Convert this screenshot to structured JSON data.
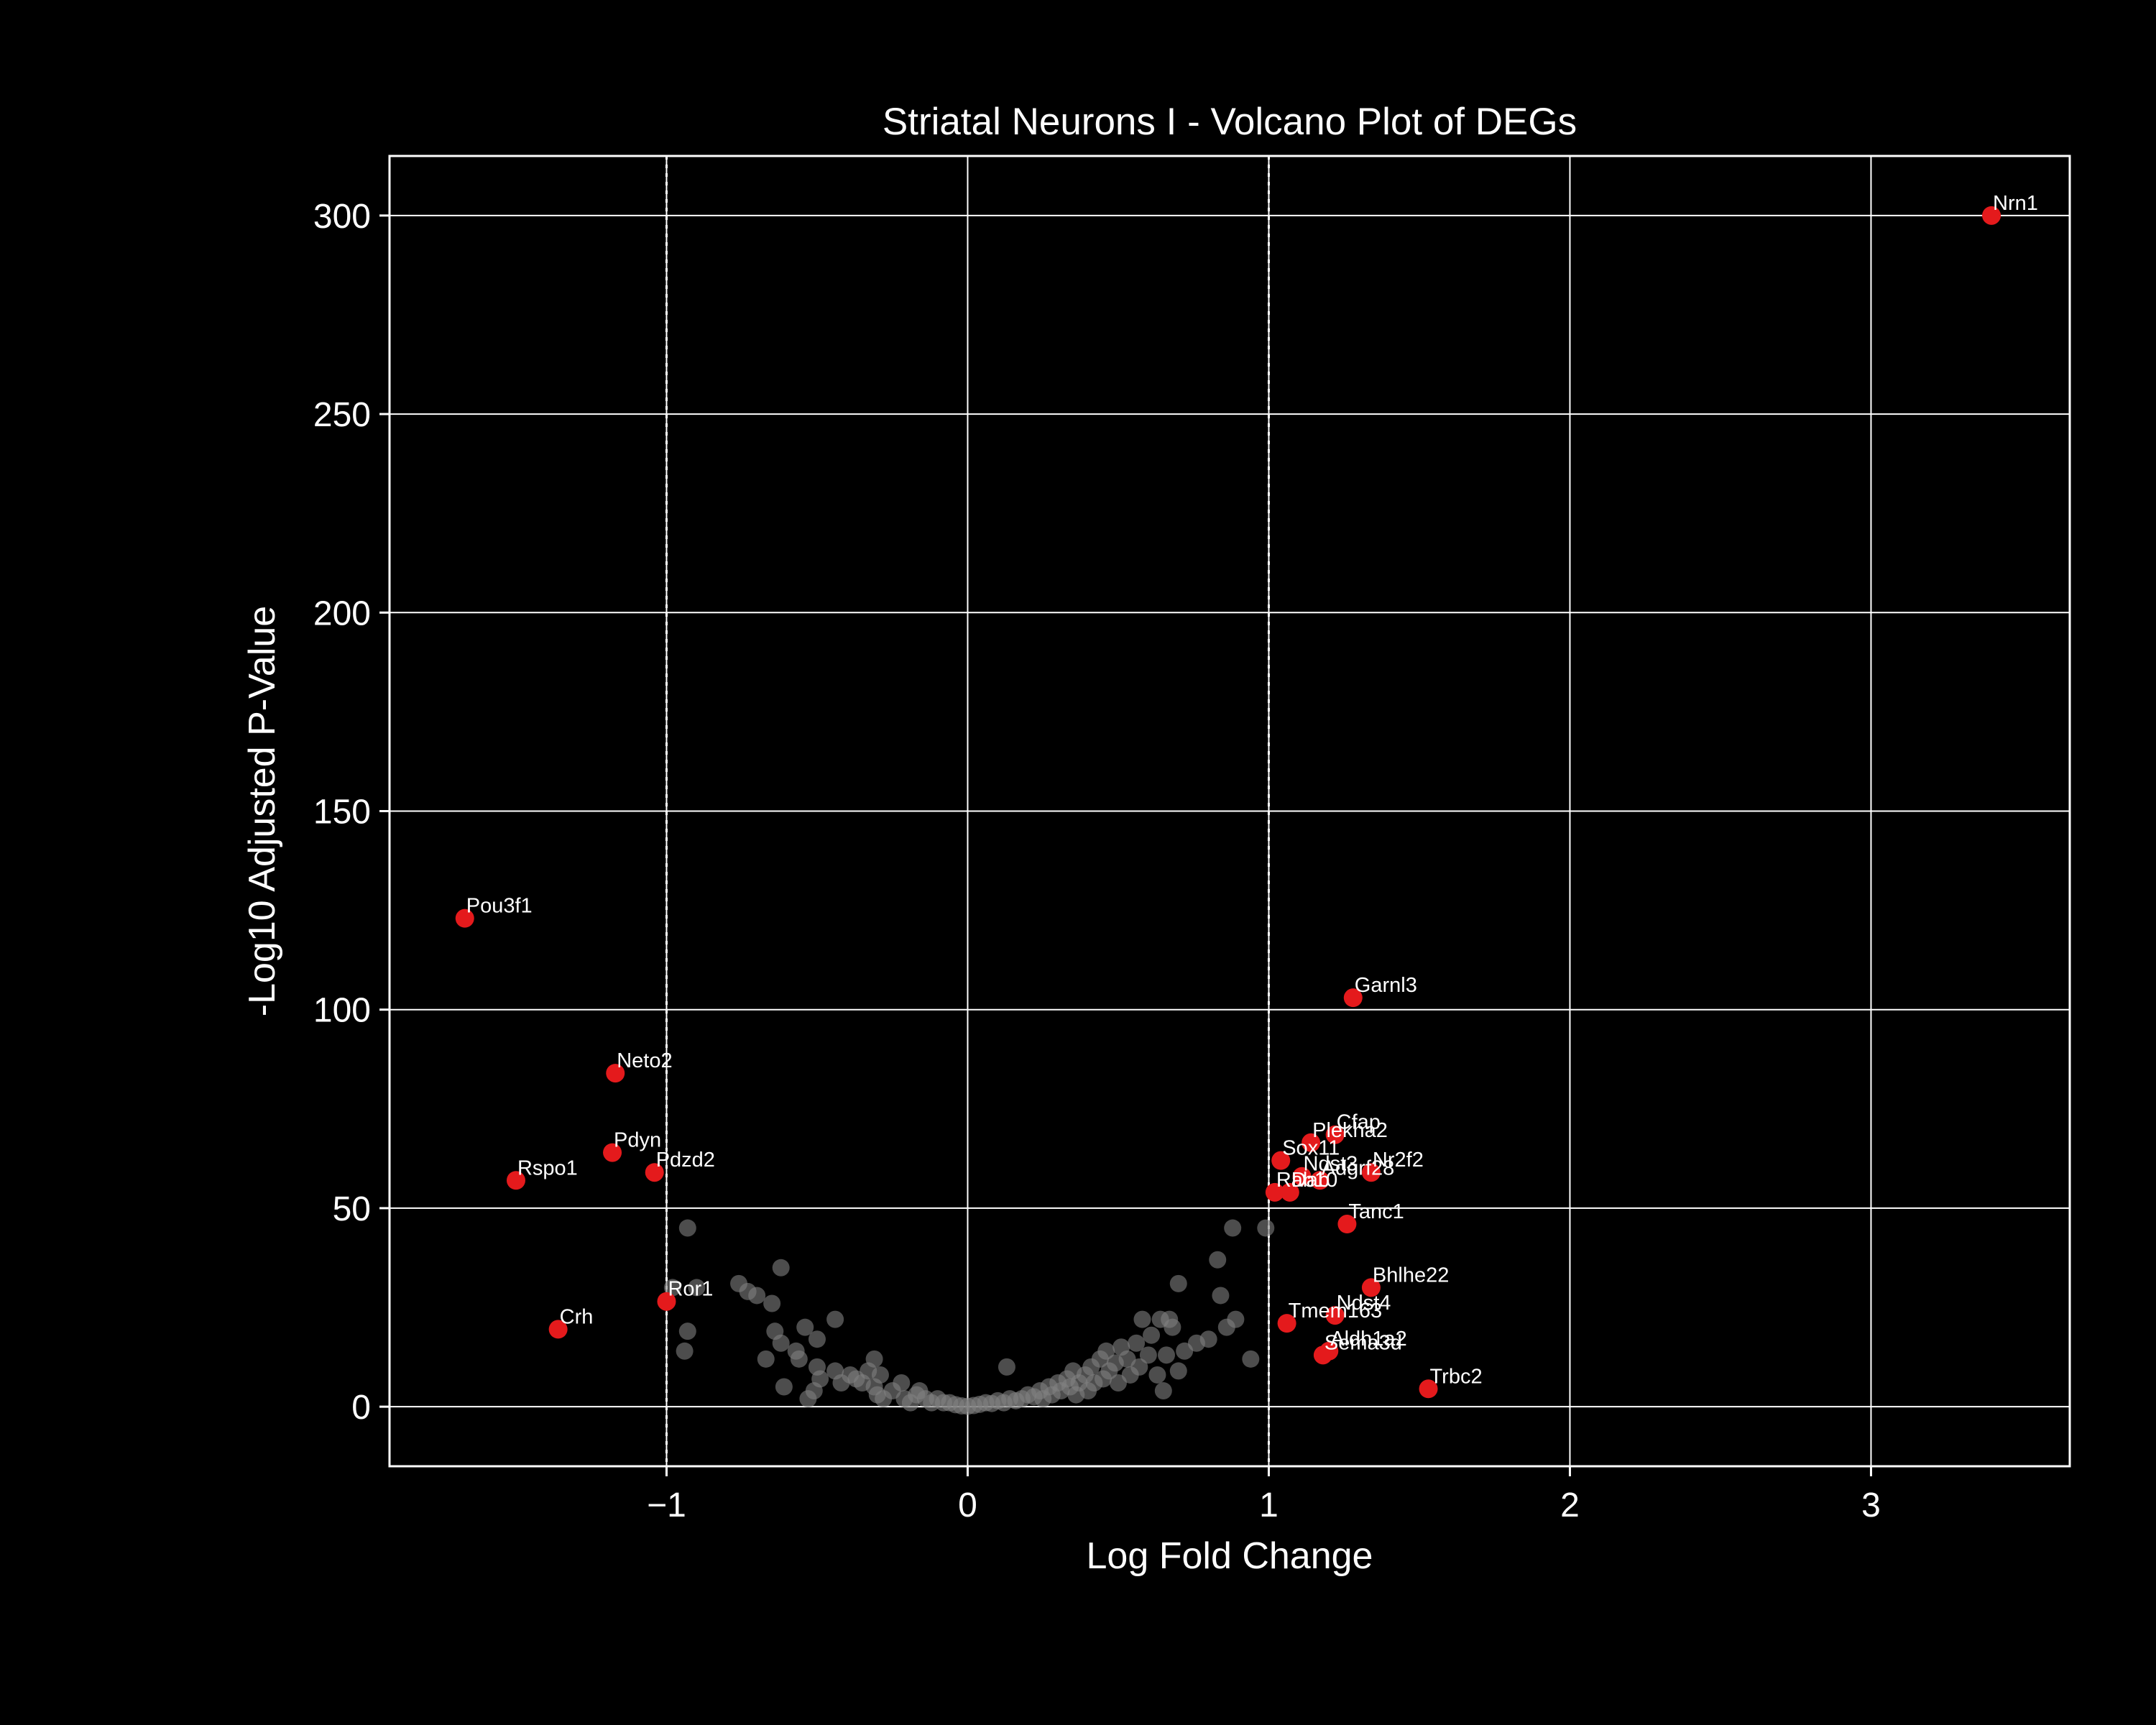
{
  "chart_data": {
    "type": "scatter",
    "title": "Striatal Neurons I - Volcano Plot of DEGs",
    "xlabel": "Log Fold Change",
    "ylabel": "-Log10 Adjusted P-Value",
    "xlim": [
      -1.92,
      3.66
    ],
    "ylim": [
      -15,
      315
    ],
    "xticks": [
      -1,
      0,
      1,
      2,
      3
    ],
    "xtick_labels": [
      "−1",
      "0",
      "1",
      "2",
      "3"
    ],
    "yticks": [
      0,
      50,
      100,
      150,
      200,
      250,
      300
    ],
    "ytick_labels": [
      "0",
      "50",
      "100",
      "150",
      "200",
      "250",
      "300"
    ],
    "grid": true,
    "threshold_lines_x": [
      -1,
      1
    ],
    "colors": {
      "background": "#000000",
      "foreground": "#ffffff",
      "significant": "#e41a1c",
      "not_significant": "#808080"
    },
    "significant": [
      {
        "gene": "Nrn1",
        "x": 3.4,
        "y": 300
      },
      {
        "gene": "Pou3f1",
        "x": -1.67,
        "y": 123
      },
      {
        "gene": "Garnl3",
        "x": 1.28,
        "y": 103
      },
      {
        "gene": "Neto2",
        "x": -1.17,
        "y": 84
      },
      {
        "gene": "Cfap",
        "x": 1.22,
        "y": 68.5
      },
      {
        "gene": "Plekha2",
        "x": 1.14,
        "y": 66.5
      },
      {
        "gene": "Pdyn",
        "x": -1.18,
        "y": 64
      },
      {
        "gene": "Sox11",
        "x": 1.04,
        "y": 62
      },
      {
        "gene": "Nr2f2",
        "x": 1.34,
        "y": 59
      },
      {
        "gene": "Pdzd2",
        "x": -1.04,
        "y": 59
      },
      {
        "gene": "Ndst3",
        "x": 1.11,
        "y": 58
      },
      {
        "gene": "Adgrf28",
        "x": 1.17,
        "y": 57
      },
      {
        "gene": "Rspo1",
        "x": -1.5,
        "y": 57
      },
      {
        "gene": "Rab10",
        "x": 1.02,
        "y": 54
      },
      {
        "gene": "Dab",
        "x": 1.07,
        "y": 54
      },
      {
        "gene": "Tanc1",
        "x": 1.26,
        "y": 46
      },
      {
        "gene": "Bhlhe22",
        "x": 1.34,
        "y": 30
      },
      {
        "gene": "Ror1",
        "x": -1.0,
        "y": 26.5
      },
      {
        "gene": "Ndst4",
        "x": 1.22,
        "y": 23
      },
      {
        "gene": "Tmem163",
        "x": 1.06,
        "y": 21
      },
      {
        "gene": "Crh",
        "x": -1.36,
        "y": 19.5
      },
      {
        "gene": "Aldh1a2",
        "x": 1.2,
        "y": 14
      },
      {
        "gene": "Sema3d",
        "x": 1.18,
        "y": 13
      },
      {
        "gene": "Trbc2",
        "x": 1.53,
        "y": 4.5
      }
    ],
    "not_significant": [
      [
        -0.93,
        45
      ],
      [
        -0.98,
        30
      ],
      [
        -0.9,
        30
      ],
      [
        -0.93,
        19
      ],
      [
        -0.94,
        14
      ],
      [
        -0.76,
        31
      ],
      [
        -0.73,
        29
      ],
      [
        -0.7,
        28
      ],
      [
        -0.65,
        26
      ],
      [
        -0.62,
        35
      ],
      [
        -0.67,
        12
      ],
      [
        -0.64,
        19
      ],
      [
        -0.62,
        16
      ],
      [
        -0.61,
        5
      ],
      [
        -0.56,
        12
      ],
      [
        -0.57,
        14
      ],
      [
        -0.54,
        20
      ],
      [
        -0.53,
        2
      ],
      [
        -0.51,
        4
      ],
      [
        -0.5,
        10
      ],
      [
        -0.5,
        17
      ],
      [
        -0.49,
        7
      ],
      [
        -0.44,
        22
      ],
      [
        -0.44,
        9
      ],
      [
        -0.42,
        6
      ],
      [
        -0.39,
        8
      ],
      [
        -0.37,
        7
      ],
      [
        -0.35,
        6
      ],
      [
        -0.33,
        9
      ],
      [
        -0.31,
        5
      ],
      [
        -0.31,
        12
      ],
      [
        -0.3,
        3
      ],
      [
        -0.29,
        8
      ],
      [
        -0.28,
        2
      ],
      [
        -0.25,
        4
      ],
      [
        -0.22,
        6
      ],
      [
        -0.21,
        2
      ],
      [
        -0.19,
        1
      ],
      [
        -0.17,
        3
      ],
      [
        -0.16,
        4
      ],
      [
        -0.14,
        2
      ],
      [
        -0.12,
        1
      ],
      [
        -0.1,
        2
      ],
      [
        -0.08,
        1
      ],
      [
        -0.06,
        1
      ],
      [
        -0.04,
        0.5
      ],
      [
        -0.02,
        0.2
      ],
      [
        0.0,
        0.1
      ],
      [
        0.02,
        0.3
      ],
      [
        0.04,
        0.6
      ],
      [
        0.06,
        1
      ],
      [
        0.08,
        0.8
      ],
      [
        0.1,
        1.5
      ],
      [
        0.12,
        1
      ],
      [
        0.13,
        10
      ],
      [
        0.14,
        2
      ],
      [
        0.16,
        1.5
      ],
      [
        0.18,
        2
      ],
      [
        0.2,
        3
      ],
      [
        0.22,
        2.5
      ],
      [
        0.24,
        4
      ],
      [
        0.25,
        2
      ],
      [
        0.27,
        5
      ],
      [
        0.28,
        3
      ],
      [
        0.3,
        6
      ],
      [
        0.31,
        4
      ],
      [
        0.33,
        7
      ],
      [
        0.34,
        5
      ],
      [
        0.35,
        9
      ],
      [
        0.36,
        3
      ],
      [
        0.37,
        6
      ],
      [
        0.39,
        8
      ],
      [
        0.4,
        4
      ],
      [
        0.41,
        10
      ],
      [
        0.42,
        6
      ],
      [
        0.44,
        12
      ],
      [
        0.45,
        7
      ],
      [
        0.46,
        14
      ],
      [
        0.47,
        9
      ],
      [
        0.49,
        11
      ],
      [
        0.5,
        6
      ],
      [
        0.51,
        15
      ],
      [
        0.53,
        12
      ],
      [
        0.54,
        8
      ],
      [
        0.56,
        16
      ],
      [
        0.57,
        10
      ],
      [
        0.58,
        22
      ],
      [
        0.6,
        13
      ],
      [
        0.61,
        18
      ],
      [
        0.63,
        8
      ],
      [
        0.64,
        22
      ],
      [
        0.65,
        4
      ],
      [
        0.66,
        13
      ],
      [
        0.67,
        22
      ],
      [
        0.68,
        20
      ],
      [
        0.7,
        31
      ],
      [
        0.7,
        9
      ],
      [
        0.72,
        14
      ],
      [
        0.76,
        16
      ],
      [
        0.8,
        17
      ],
      [
        0.83,
        37
      ],
      [
        0.84,
        28
      ],
      [
        0.86,
        20
      ],
      [
        0.88,
        45
      ],
      [
        0.89,
        22
      ],
      [
        0.94,
        12
      ],
      [
        0.99,
        45
      ]
    ]
  }
}
